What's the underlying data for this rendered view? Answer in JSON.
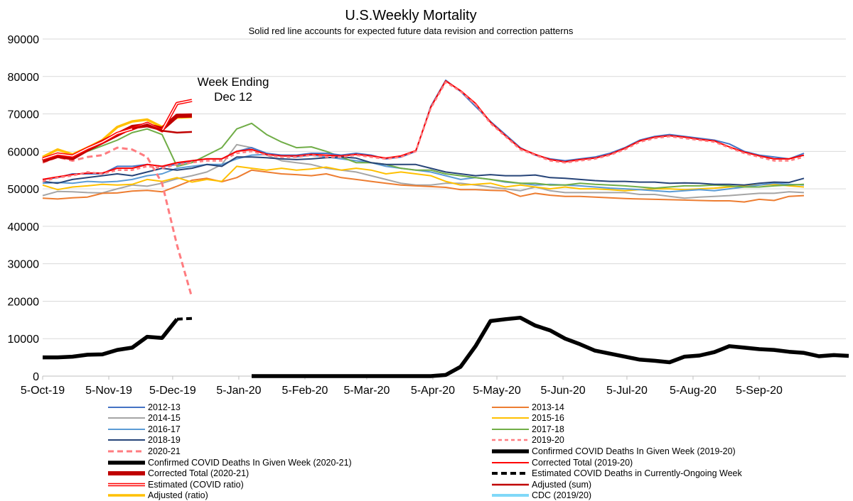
{
  "chart_data": {
    "type": "line",
    "title": "U.S.Weekly Mortality",
    "subtitle": "Solid red line accounts for expected future data revision and correction patterns",
    "annotation": "Week Ending\nDec 12",
    "ylim": [
      0,
      90000
    ],
    "yticks": [
      0,
      10000,
      20000,
      30000,
      40000,
      50000,
      60000,
      70000,
      80000,
      90000
    ],
    "xticks": [
      "5-Oct-19",
      "5-Nov-19",
      "5-Dec-19",
      "5-Jan-20",
      "5-Feb-20",
      "5-Mar-20",
      "5-Apr-20",
      "5-May-20",
      "5-Jun-20",
      "5-Jul-20",
      "5-Aug-20",
      "5-Sep-20"
    ],
    "xtick_weeks": [
      0,
      4.43,
      8.71,
      13.14,
      17.57,
      21.71,
      26.14,
      30.43,
      34.86,
      39.14,
      43.57,
      48.0
    ],
    "x_unit": "week index (weekly points starting 5-Oct-19)",
    "grid": "horizontal",
    "legend_position": "bottom",
    "series": [
      {
        "name": "2012-13",
        "color": "#4472c4",
        "width": 2,
        "dash": "",
        "start": 0,
        "values": [
          52500,
          53000,
          54000,
          54000,
          54000,
          56000,
          56000,
          56500,
          56000,
          56500,
          57500,
          58000,
          58000,
          60000,
          61000,
          59500,
          59000,
          59000,
          59500,
          59500,
          59000,
          59500,
          59000,
          58000,
          58500,
          60000,
          72000,
          79000,
          76000,
          72000,
          68000,
          64500,
          61000,
          59000,
          58000,
          57500,
          58000,
          58500,
          59500,
          61000,
          63000,
          64000,
          64500,
          64000,
          63500,
          63000,
          62000,
          60000,
          59000,
          58500,
          58000,
          59500
        ]
      },
      {
        "name": "2013-14",
        "color": "#ed7d31",
        "width": 2,
        "dash": "",
        "start": 0,
        "values": [
          47500,
          47300,
          47600,
          47800,
          48800,
          48900,
          49400,
          49600,
          49200,
          50700,
          52300,
          52800,
          51900,
          53000,
          55000,
          54500,
          54000,
          53800,
          53500,
          54000,
          53000,
          52500,
          52000,
          51500,
          51000,
          50800,
          50600,
          50400,
          49800,
          49800,
          49600,
          49500,
          48000,
          48800,
          48300,
          48000,
          48000,
          47800,
          47600,
          47400,
          47300,
          47200,
          47100,
          47000,
          46900,
          46800,
          46800,
          46500,
          47200,
          46900,
          48000,
          48200
        ]
      },
      {
        "name": "2014-15",
        "color": "#a5a5a5",
        "width": 2,
        "dash": "",
        "start": 0,
        "values": [
          48200,
          49300,
          49200,
          49000,
          48900,
          50000,
          51000,
          50700,
          51500,
          52700,
          53500,
          54500,
          56500,
          61800,
          61000,
          59000,
          57500,
          57000,
          56500,
          55500,
          55000,
          54500,
          53500,
          52500,
          51500,
          51000,
          51000,
          51500,
          51500,
          51000,
          50500,
          50000,
          49500,
          50500,
          49500,
          49000,
          49000,
          49000,
          49000,
          49000,
          48500,
          48500,
          48000,
          47500,
          47800,
          48000,
          48200,
          48500,
          48800,
          48800,
          49200,
          49000
        ]
      },
      {
        "name": "2015-16",
        "color": "#ffc000",
        "width": 2,
        "dash": "",
        "start": 0,
        "values": [
          51000,
          49800,
          50500,
          50800,
          51200,
          51000,
          51200,
          52500,
          52000,
          53000,
          51800,
          52500,
          52000,
          56000,
          55500,
          55000,
          55500,
          55000,
          55300,
          55800,
          55000,
          55500,
          55000,
          54000,
          54500,
          54000,
          53500,
          52000,
          51000,
          51200,
          51500,
          50500,
          51000,
          50500,
          50000,
          50500,
          50000,
          50000,
          49800,
          49500,
          49800,
          50000,
          50000,
          49800,
          50000,
          50200,
          50500,
          50800,
          51000,
          51200,
          50800,
          50500
        ]
      },
      {
        "name": "2016-17",
        "color": "#5b9bd5",
        "width": 2,
        "dash": "",
        "start": 0,
        "values": [
          51500,
          51700,
          51500,
          52000,
          51800,
          52000,
          52500,
          53500,
          54000,
          55500,
          56000,
          56500,
          56500,
          58000,
          59000,
          59200,
          59000,
          58500,
          59000,
          58500,
          58000,
          57500,
          57000,
          56000,
          55500,
          55000,
          54500,
          53500,
          52500,
          53000,
          52500,
          51800,
          51500,
          51000,
          51200,
          51000,
          50800,
          50500,
          50200,
          50000,
          49800,
          49500,
          49200,
          49500,
          49800,
          49500,
          50000,
          50500,
          51000,
          51500,
          51200,
          51000
        ]
      },
      {
        "name": "2017-18",
        "color": "#70ad47",
        "width": 2,
        "dash": "",
        "start": 0,
        "values": [
          57500,
          59500,
          58500,
          60000,
          61500,
          63000,
          65000,
          66000,
          64500,
          56000,
          57000,
          59000,
          61000,
          66000,
          67500,
          64500,
          62500,
          61000,
          61200,
          60000,
          58500,
          57000,
          57000,
          56500,
          55500,
          55000,
          55000,
          54000,
          53500,
          53000,
          52500,
          52000,
          51500,
          51500,
          51000,
          51000,
          51500,
          51200,
          51000,
          50800,
          50500,
          50200,
          50500,
          50800,
          50800,
          51000,
          50800,
          50500,
          50500,
          50800,
          51000,
          51200
        ]
      },
      {
        "name": "2018-19",
        "color": "#264478",
        "width": 2,
        "dash": "",
        "start": 0,
        "values": [
          52000,
          51500,
          52500,
          53000,
          53500,
          54000,
          53500,
          54500,
          55500,
          55000,
          55500,
          56500,
          56000,
          58500,
          58500,
          58300,
          58000,
          57800,
          58000,
          58300,
          58500,
          58200,
          57000,
          56500,
          56500,
          56500,
          55500,
          54500,
          54000,
          53500,
          53800,
          53500,
          53500,
          53700,
          53000,
          52800,
          52500,
          52200,
          52000,
          52000,
          51800,
          51800,
          51500,
          51600,
          51500,
          51200,
          51200,
          51000,
          51500,
          51800,
          51700,
          52800
        ]
      },
      {
        "name": "2020-21",
        "color": "#ff7c80",
        "width": 3,
        "dash": "8,5",
        "start": 0,
        "values": [
          57000,
          58500,
          57500,
          58500,
          59000,
          61000,
          60500,
          58500,
          51500,
          35000,
          21000
        ]
      },
      {
        "name": "2019-20",
        "color": "#ff7c80",
        "width": 2.5,
        "dash": "5,4",
        "start": 0,
        "values": [
          52000,
          53000,
          53500,
          54500,
          54000,
          55000,
          55000,
          56000,
          55500,
          56500,
          57000,
          57500,
          57500,
          59500,
          60000,
          59000,
          58500,
          58500,
          59000,
          58500,
          58500,
          59000,
          58500,
          58000,
          58500,
          60000,
          71500,
          78500,
          76000,
          72500,
          67500,
          64000,
          60500,
          59000,
          57500,
          57000,
          57500,
          58000,
          59000,
          60500,
          62500,
          63500,
          64000,
          63500,
          63000,
          62500,
          61000,
          59500,
          58500,
          57500,
          57500,
          58500
        ]
      },
      {
        "name": "Confirmed COVID Deaths In Given Week (2019-20)",
        "color": "#000000",
        "width": 5.5,
        "dash": "",
        "start": 0,
        "values": [
          null,
          null,
          null,
          null,
          null,
          null,
          null,
          null,
          null,
          null,
          null,
          null,
          null,
          null,
          0,
          0,
          0,
          0,
          0,
          0,
          0,
          0,
          0,
          0,
          0,
          0,
          0,
          300,
          2500,
          8000,
          14700,
          15200,
          15600,
          13500,
          12200,
          10000,
          8500,
          6800,
          6000,
          5200,
          4400,
          4100,
          3700,
          5200,
          5500,
          6400,
          8000,
          7600,
          7200,
          7000,
          6500,
          6200,
          5300,
          5600,
          5400
        ]
      },
      {
        "name": "Confirmed COVID Deaths In Given Week (2020-21)",
        "color": "#000000",
        "width": 5.5,
        "dash": "",
        "start": 0,
        "values": [
          5000,
          5000,
          5200,
          5700,
          5800,
          7000,
          7600,
          10500,
          10200,
          15200
        ]
      },
      {
        "name": "Corrected Total (2019-20)",
        "color": "#ff0000",
        "width": 2,
        "dash": "",
        "start": 0,
        "values": [
          52500,
          53200,
          53800,
          54200,
          54200,
          55500,
          55500,
          56500,
          56000,
          57000,
          57500,
          58000,
          58000,
          60000,
          60500,
          59200,
          58800,
          58800,
          59200,
          59000,
          58800,
          59200,
          58800,
          58200,
          58800,
          60200,
          71800,
          78800,
          76200,
          72800,
          67800,
          64200,
          60800,
          59200,
          57800,
          57200,
          57800,
          58200,
          59200,
          60800,
          62800,
          63800,
          64200,
          63800,
          63200,
          62800,
          61200,
          59800,
          58800,
          58000,
          58000,
          59000
        ]
      },
      {
        "name": "Corrected Total (2020-21)",
        "color": "#c00000",
        "width": 6,
        "dash": "",
        "start": 0,
        "values": [
          57500,
          58800,
          58200,
          60500,
          62500,
          64500,
          66500,
          67000,
          66000,
          69500,
          69600
        ]
      },
      {
        "name": "Estimated COVID Deaths in Currently-Ongoing Week",
        "color": "#000000",
        "width": 4,
        "dash": "8,5",
        "start": 9,
        "values": [
          15200,
          15400
        ]
      },
      {
        "name": "Estimated (COVID ratio)",
        "color": "#ff0000",
        "width": 4.5,
        "dash": "",
        "outline": true,
        "start": 0,
        "values": [
          58000,
          59300,
          58800,
          60800,
          62500,
          64800,
          66000,
          67500,
          65500,
          72800,
          73600
        ]
      },
      {
        "name": "Adjusted (sum)",
        "color": "#c00000",
        "width": 2.5,
        "dash": "",
        "start": 6,
        "values": [
          66000,
          67200,
          65500,
          65000,
          65200
        ]
      },
      {
        "name": "Adjusted (ratio)",
        "color": "#ffc000",
        "width": 3.5,
        "dash": "",
        "start": 0,
        "values": [
          58500,
          60500,
          59200,
          61000,
          63000,
          66500,
          68000,
          68500,
          66500,
          69000,
          69200
        ]
      },
      {
        "name": "CDC (2019/20)",
        "color": "#00b0f0",
        "width": 3,
        "dash": "",
        "outline": true,
        "start": 0,
        "values": [
          58000,
          59500,
          59000,
          60000,
          61000,
          62500,
          64000,
          64500,
          63500,
          57000
        ]
      }
    ]
  },
  "legend_left": [
    0,
    2,
    4,
    6,
    7,
    10,
    12,
    14,
    16
  ],
  "legend_right": [
    1,
    3,
    5,
    8,
    9,
    11,
    13,
    15,
    17
  ]
}
